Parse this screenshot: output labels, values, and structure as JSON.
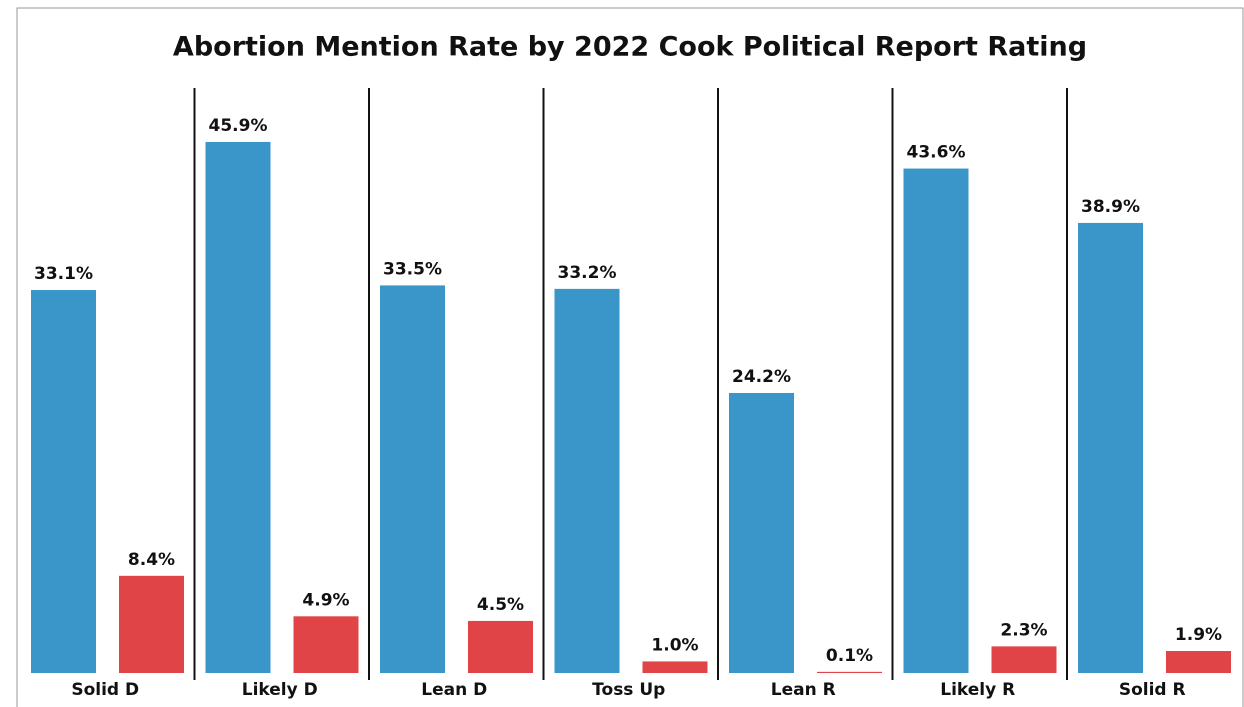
{
  "chart_data": {
    "type": "bar",
    "title": "Abortion Mention Rate by 2022 Cook Political Report Rating",
    "categories": [
      "Solid D",
      "Likely D",
      "Lean D",
      "Toss Up",
      "Lean R",
      "Likely R",
      "Solid R"
    ],
    "series": [
      {
        "color": "#3a96c9",
        "values": [
          33.1,
          45.9,
          33.5,
          33.2,
          24.2,
          43.6,
          38.9
        ],
        "value_labels": [
          "33.1%",
          "45.9%",
          "33.5%",
          "33.2%",
          "24.2%",
          "43.6%",
          "38.9%"
        ]
      },
      {
        "color": "#e04446",
        "values": [
          8.4,
          4.9,
          4.5,
          1.0,
          0.1,
          2.3,
          1.9
        ],
        "value_labels": [
          "8.4%",
          "4.9%",
          "4.5%",
          "1.0%",
          "0.1%",
          "2.3%",
          "1.9%"
        ]
      }
    ]
  }
}
